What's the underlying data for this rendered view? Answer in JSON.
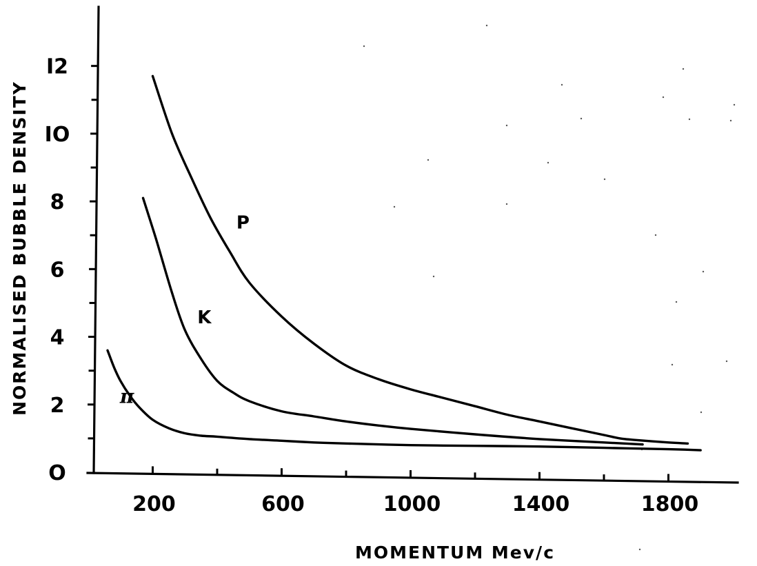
{
  "chart_data": {
    "type": "line",
    "title": "",
    "xlabel": "MOMENTUM  Mev/c",
    "ylabel": "NORMALISED  BUBBLE  DENSITY",
    "xlim": [
      0,
      2000
    ],
    "ylim": [
      0,
      13.5
    ],
    "x_ticks": [
      200,
      600,
      1000,
      1400,
      1800
    ],
    "x_tick_labels": [
      "200",
      "600",
      "1000",
      "1400",
      "1800"
    ],
    "x_minor_ticks": [
      400,
      800,
      1200,
      1600
    ],
    "y_ticks": [
      0,
      2,
      4,
      6,
      8,
      10,
      12
    ],
    "y_tick_labels": [
      "O",
      "2",
      "4",
      "6",
      "8",
      "IO",
      "I2"
    ],
    "y_minor_ticks": [
      1,
      3,
      5,
      7,
      9,
      11
    ],
    "grid": false,
    "legend": "none",
    "series": [
      {
        "name": "P",
        "x": [
          200,
          260,
          320,
          380,
          440,
          500,
          600,
          700,
          800,
          900,
          1000,
          1100,
          1200,
          1300,
          1400,
          1500,
          1600,
          1650,
          1700,
          1800,
          1860
        ],
        "y": [
          11.7,
          10.0,
          8.7,
          7.5,
          6.5,
          5.6,
          4.6,
          3.8,
          3.15,
          2.75,
          2.45,
          2.2,
          1.95,
          1.7,
          1.5,
          1.3,
          1.1,
          1.0,
          0.95,
          0.88,
          0.85
        ]
      },
      {
        "name": "K",
        "x": [
          170,
          210,
          260,
          300,
          350,
          400,
          450,
          500,
          600,
          700,
          800,
          900,
          1000,
          1200,
          1400,
          1600,
          1720
        ],
        "y": [
          8.1,
          6.9,
          5.3,
          4.2,
          3.35,
          2.7,
          2.35,
          2.1,
          1.8,
          1.65,
          1.5,
          1.38,
          1.28,
          1.12,
          0.98,
          0.88,
          0.82
        ]
      },
      {
        "name": "π",
        "x": [
          60,
          80,
          100,
          130,
          160,
          200,
          250,
          300,
          350,
          400,
          500,
          600,
          700,
          800,
          1000,
          1200,
          1400,
          1600,
          1800,
          1900
        ],
        "y": [
          3.6,
          3.1,
          2.7,
          2.25,
          1.9,
          1.55,
          1.3,
          1.15,
          1.08,
          1.05,
          0.98,
          0.93,
          0.88,
          0.85,
          0.8,
          0.78,
          0.76,
          0.72,
          0.68,
          0.65
        ]
      }
    ],
    "annotations": [
      {
        "text": "P",
        "x": 480,
        "y": 7.2
      },
      {
        "text": "K",
        "x": 360,
        "y": 4.4
      },
      {
        "text": "π",
        "x": 120,
        "y": 2.05
      }
    ]
  }
}
